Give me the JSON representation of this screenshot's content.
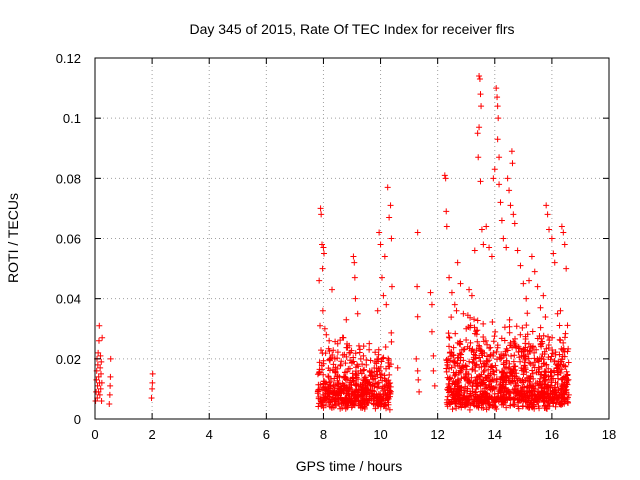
{
  "chart_data": {
    "type": "scatter",
    "title": "Day 345 of 2015, Rate Of TEC Index for receiver flrs",
    "xlabel": "GPS time / hours",
    "ylabel": "ROTI / TECUs",
    "xlim": [
      0,
      18
    ],
    "ylim": [
      0,
      0.12
    ],
    "xticks": [
      0,
      2,
      4,
      6,
      8,
      10,
      12,
      14,
      16,
      18
    ],
    "yticks": [
      0,
      0.02,
      0.04,
      0.06,
      0.08,
      0.1,
      0.12
    ],
    "ytick_labels": [
      "0",
      "0.02",
      "0.04",
      "0.06",
      "0.08",
      "0.1",
      "0.12"
    ],
    "grid": true,
    "marker": "+",
    "color": "#ff0000",
    "series": [
      {
        "name": "flrs",
        "points": [
          [
            0.02,
            0.006
          ],
          [
            0.04,
            0.009
          ],
          [
            0.05,
            0.013
          ],
          [
            0.06,
            0.016
          ],
          [
            0.07,
            0.02
          ],
          [
            0.08,
            0.007
          ],
          [
            0.09,
            0.011
          ],
          [
            0.1,
            0.018
          ],
          [
            0.11,
            0.022
          ],
          [
            0.12,
            0.009
          ],
          [
            0.13,
            0.014
          ],
          [
            0.14,
            0.026
          ],
          [
            0.15,
            0.031
          ],
          [
            0.16,
            0.012
          ],
          [
            0.17,
            0.008
          ],
          [
            0.18,
            0.017
          ],
          [
            0.19,
            0.021
          ],
          [
            0.2,
            0.01
          ],
          [
            0.21,
            0.015
          ],
          [
            0.22,
            0.019
          ],
          [
            0.23,
            0.006
          ],
          [
            0.24,
            0.012
          ],
          [
            0.25,
            0.027
          ],
          [
            0.5,
            0.005
          ],
          [
            0.52,
            0.008
          ],
          [
            0.53,
            0.011
          ],
          [
            0.54,
            0.014
          ],
          [
            0.55,
            0.02
          ],
          [
            1.98,
            0.007
          ],
          [
            2.0,
            0.01
          ],
          [
            2.01,
            0.012
          ],
          [
            2.02,
            0.015
          ],
          [
            7.85,
            0.046
          ],
          [
            7.9,
            0.07
          ],
          [
            7.92,
            0.068
          ],
          [
            7.95,
            0.058
          ],
          [
            7.97,
            0.05
          ],
          [
            8.0,
            0.057
          ],
          [
            8.02,
            0.055
          ],
          [
            8.05,
            0.03
          ],
          [
            7.88,
            0.031
          ],
          [
            7.98,
            0.036
          ],
          [
            8.1,
            0.028
          ],
          [
            8.2,
            0.026
          ],
          [
            8.3,
            0.043
          ],
          [
            8.4,
            0.02
          ],
          [
            8.5,
            0.025
          ],
          [
            8.6,
            0.018
          ],
          [
            8.7,
            0.027
          ],
          [
            8.8,
            0.033
          ],
          [
            8.9,
            0.022
          ],
          [
            9.05,
            0.054
          ],
          [
            9.08,
            0.052
          ],
          [
            9.1,
            0.047
          ],
          [
            9.12,
            0.04
          ],
          [
            9.2,
            0.035
          ],
          [
            9.3,
            0.016
          ],
          [
            9.4,
            0.021
          ],
          [
            9.5,
            0.018
          ],
          [
            9.6,
            0.023
          ],
          [
            9.7,
            0.015
          ],
          [
            9.8,
            0.019
          ],
          [
            9.9,
            0.036
          ],
          [
            9.95,
            0.062
          ],
          [
            10.0,
            0.058
          ],
          [
            10.05,
            0.047
          ],
          [
            10.1,
            0.041
          ],
          [
            10.15,
            0.054
          ],
          [
            10.2,
            0.038
          ],
          [
            10.25,
            0.077
          ],
          [
            10.3,
            0.067
          ],
          [
            10.35,
            0.071
          ],
          [
            10.38,
            0.06
          ],
          [
            10.4,
            0.044
          ],
          [
            10.6,
            0.017
          ],
          [
            11.3,
            0.062
          ],
          [
            11.28,
            0.044
          ],
          [
            11.3,
            0.034
          ],
          [
            11.25,
            0.02
          ],
          [
            11.3,
            0.016
          ],
          [
            11.32,
            0.013
          ],
          [
            11.35,
            0.009
          ],
          [
            11.75,
            0.042
          ],
          [
            11.8,
            0.038
          ],
          [
            11.8,
            0.029
          ],
          [
            11.85,
            0.021
          ],
          [
            11.85,
            0.016
          ],
          [
            11.9,
            0.011
          ],
          [
            12.25,
            0.081
          ],
          [
            12.28,
            0.08
          ],
          [
            12.3,
            0.069
          ],
          [
            12.32,
            0.064
          ],
          [
            12.4,
            0.047
          ],
          [
            12.5,
            0.042
          ],
          [
            12.6,
            0.038
          ],
          [
            12.7,
            0.052
          ],
          [
            12.8,
            0.045
          ],
          [
            12.9,
            0.035
          ],
          [
            13.0,
            0.03
          ],
          [
            13.1,
            0.043
          ],
          [
            13.2,
            0.041
          ],
          [
            13.3,
            0.056
          ],
          [
            13.45,
            0.114
          ],
          [
            13.48,
            0.113
          ],
          [
            13.5,
            0.108
          ],
          [
            13.52,
            0.104
          ],
          [
            13.45,
            0.097
          ],
          [
            13.4,
            0.095
          ],
          [
            13.42,
            0.087
          ],
          [
            13.5,
            0.079
          ],
          [
            13.55,
            0.063
          ],
          [
            13.6,
            0.058
          ],
          [
            13.7,
            0.064
          ],
          [
            13.8,
            0.057
          ],
          [
            13.9,
            0.054
          ],
          [
            13.95,
            0.08
          ],
          [
            14.0,
            0.083
          ],
          [
            14.05,
            0.11
          ],
          [
            14.08,
            0.107
          ],
          [
            14.1,
            0.104
          ],
          [
            14.12,
            0.1
          ],
          [
            14.1,
            0.093
          ],
          [
            14.15,
            0.087
          ],
          [
            14.15,
            0.078
          ],
          [
            14.2,
            0.072
          ],
          [
            14.25,
            0.066
          ],
          [
            14.3,
            0.06
          ],
          [
            14.4,
            0.057
          ],
          [
            14.45,
            0.08
          ],
          [
            14.5,
            0.076
          ],
          [
            14.55,
            0.071
          ],
          [
            14.6,
            0.089
          ],
          [
            14.62,
            0.085
          ],
          [
            14.65,
            0.068
          ],
          [
            14.7,
            0.065
          ],
          [
            14.8,
            0.056
          ],
          [
            14.9,
            0.051
          ],
          [
            15.0,
            0.045
          ],
          [
            15.1,
            0.04
          ],
          [
            15.2,
            0.046
          ],
          [
            15.3,
            0.054
          ],
          [
            15.4,
            0.049
          ],
          [
            15.5,
            0.044
          ],
          [
            15.6,
            0.037
          ],
          [
            15.7,
            0.041
          ],
          [
            15.8,
            0.071
          ],
          [
            15.85,
            0.068
          ],
          [
            15.9,
            0.063
          ],
          [
            16.0,
            0.06
          ],
          [
            16.05,
            0.055
          ],
          [
            16.1,
            0.052
          ],
          [
            16.2,
            0.035
          ],
          [
            16.3,
            0.036
          ],
          [
            16.35,
            0.064
          ],
          [
            16.4,
            0.062
          ],
          [
            16.45,
            0.058
          ],
          [
            16.5,
            0.05
          ]
        ],
        "band": {
          "description": "dense cluster of low ROTI values",
          "segments": [
            {
              "x": [
                7.8,
                10.4
              ],
              "y": [
                0.003,
                0.027
              ],
              "count": 560
            },
            {
              "x": [
                12.3,
                16.6
              ],
              "y": [
                0.003,
                0.035
              ],
              "count": 1100
            }
          ]
        }
      }
    ]
  }
}
